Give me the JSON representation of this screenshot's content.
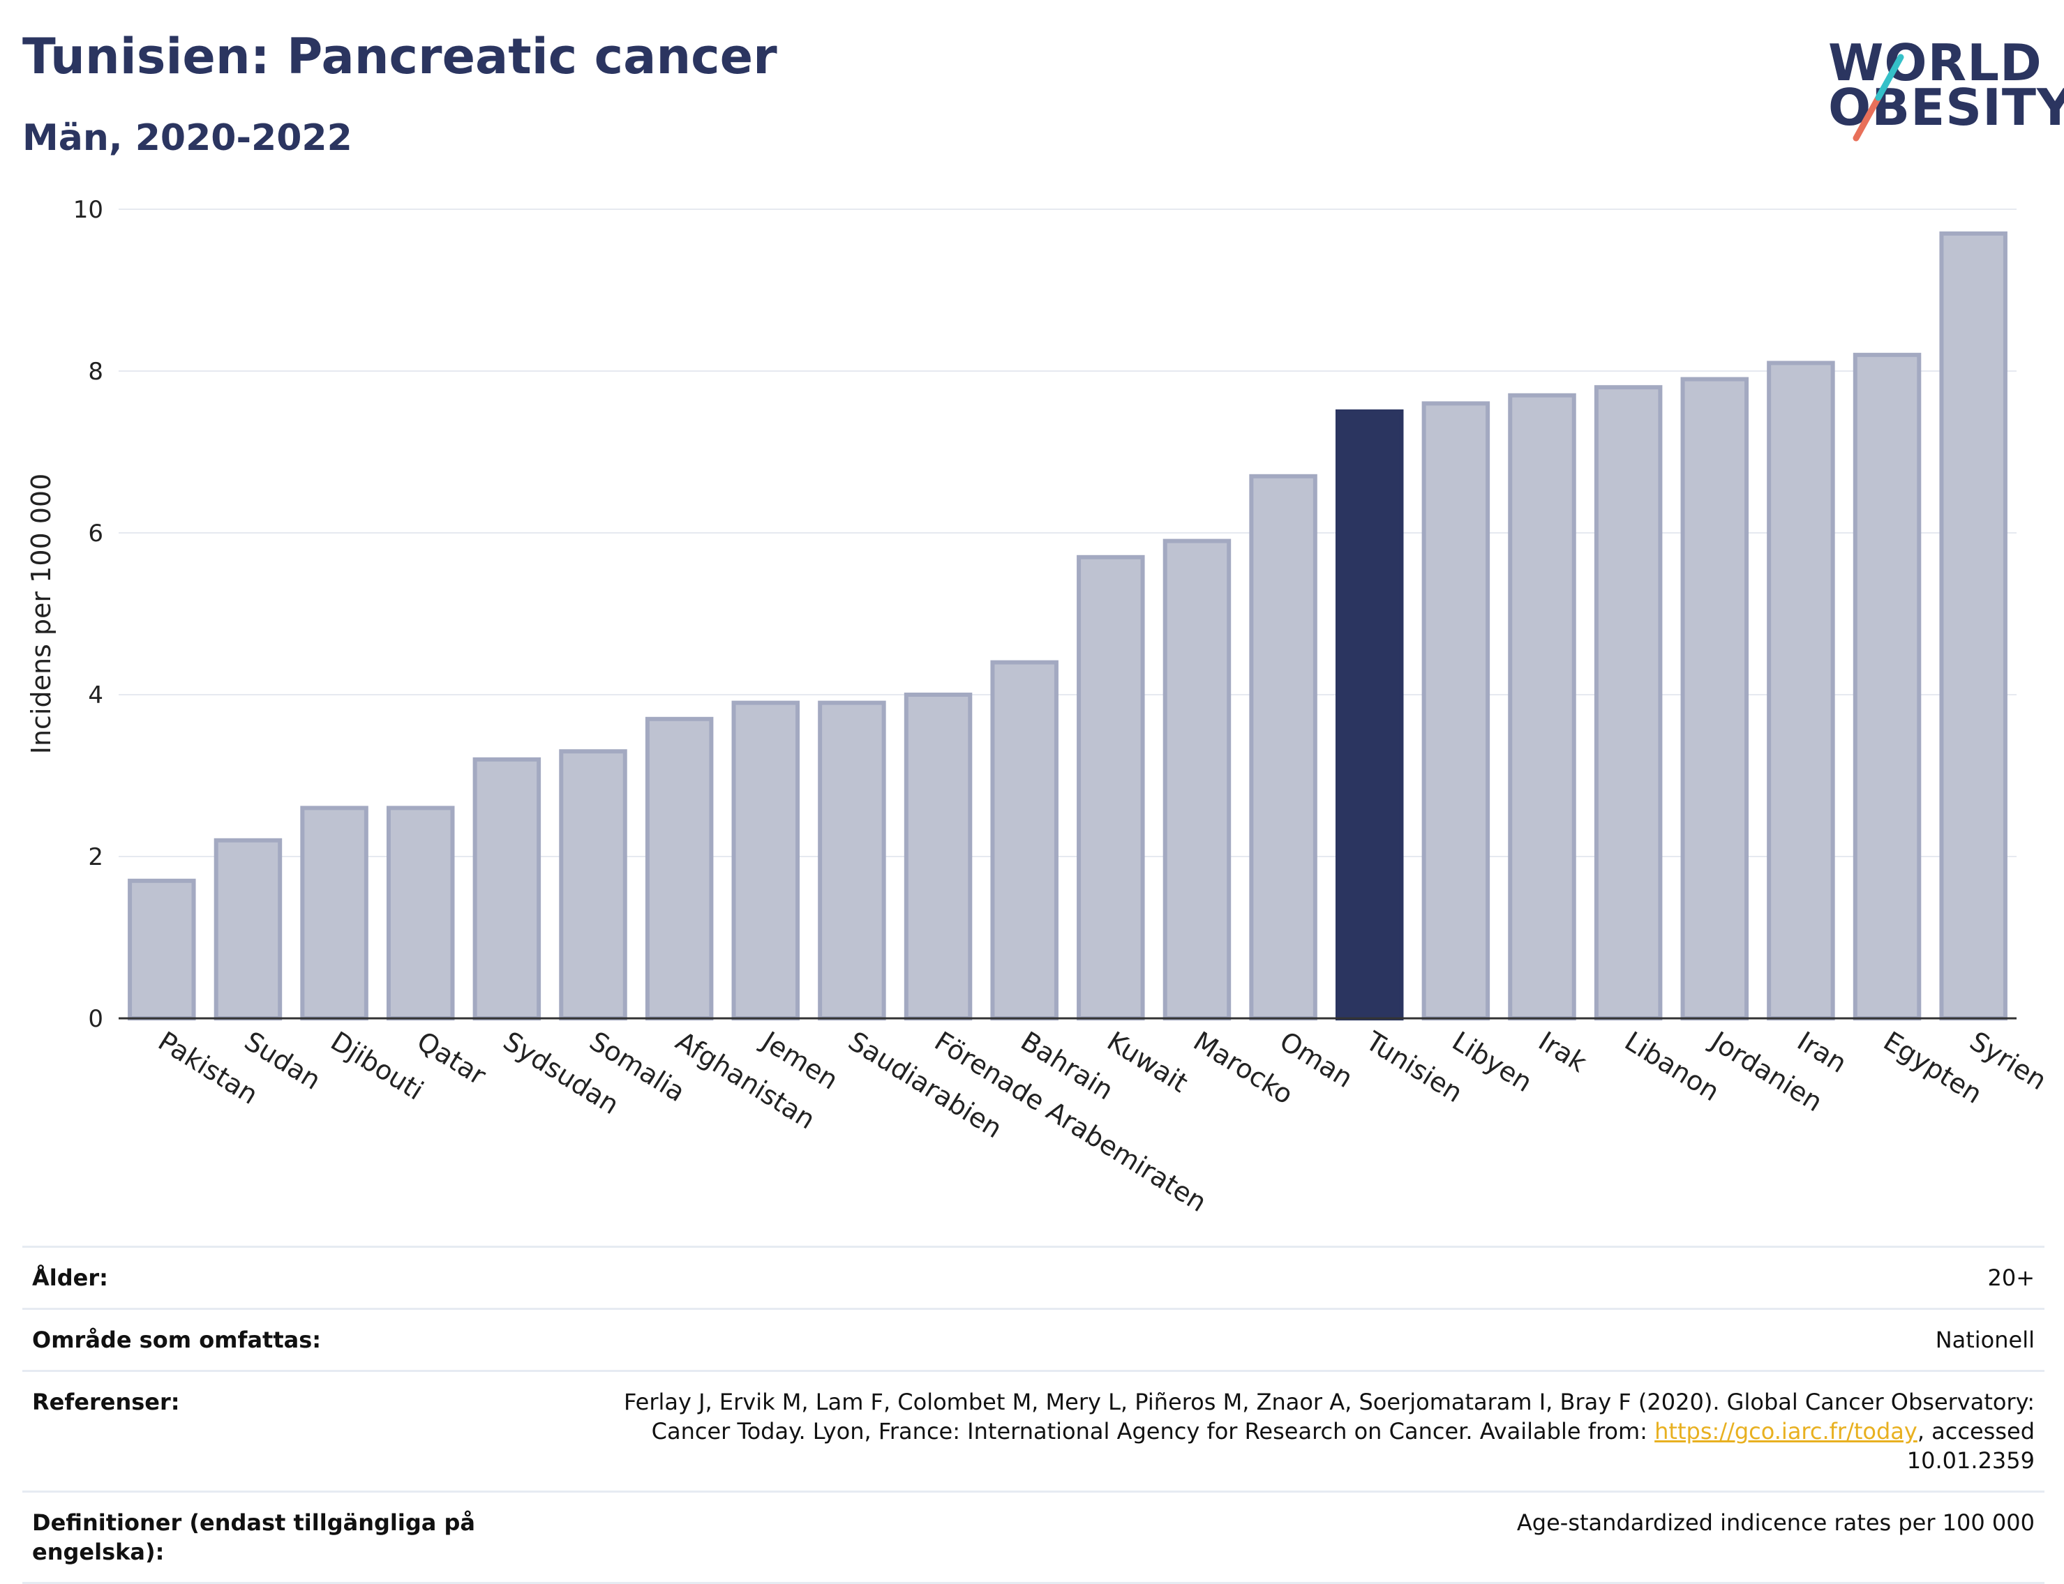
{
  "header": {
    "title": "Tunisien: Pancreatic cancer",
    "subtitle": "Män, 2020-2022"
  },
  "logo": {
    "line1": "WORLD",
    "line2": "OBESITY",
    "slash_colors": [
      "#35c0c8",
      "#e8705a"
    ]
  },
  "colors": {
    "highlight": "#2b3560",
    "bar_fill": "#bec2d1",
    "bar_border": "#a3a9c1"
  },
  "chart_data": {
    "type": "bar",
    "categories": [
      "Pakistan",
      "Sudan",
      "Djibouti",
      "Qatar",
      "Sydsudan",
      "Somalia",
      "Afghanistan",
      "Jemen",
      "Saudiarabien",
      "Förenade Arabemiraten",
      "Bahrain",
      "Kuwait",
      "Marocko",
      "Oman",
      "Tunisien",
      "Libyen",
      "Irak",
      "Libanon",
      "Jordanien",
      "Iran",
      "Egypten",
      "Syrien"
    ],
    "values": [
      1.7,
      2.2,
      2.6,
      2.6,
      3.2,
      3.3,
      3.7,
      3.9,
      3.9,
      4.0,
      4.4,
      5.7,
      5.9,
      6.7,
      7.5,
      7.6,
      7.7,
      7.8,
      7.9,
      8.1,
      8.2,
      9.7
    ],
    "highlight": "Tunisien",
    "ylabel": "Incidens per 100 000",
    "ylim": [
      0,
      10
    ],
    "yticks": [
      0,
      2,
      4,
      6,
      8,
      10
    ],
    "grid": true
  },
  "info": {
    "rows": [
      {
        "label": "Ålder:",
        "value": "20+"
      },
      {
        "label": "Område som omfattas:",
        "value": "Nationell"
      },
      {
        "label": "Referenser:",
        "value_pre": "Ferlay J, Ervik M, Lam F, Colombet M, Mery L, Piñeros M, Znaor A, Soerjomataram I, Bray F (2020). Global Cancer Observatory: Cancer Today. Lyon, France: International Agency for Research on Cancer. Available from: ",
        "link": "https://gco.iarc.fr/today",
        "value_post": ", accessed 10.01.2359"
      },
      {
        "label": "Definitioner (endast tillgängliga på engelska):",
        "value": "Age-standardized indicence rates per 100 000"
      }
    ]
  }
}
